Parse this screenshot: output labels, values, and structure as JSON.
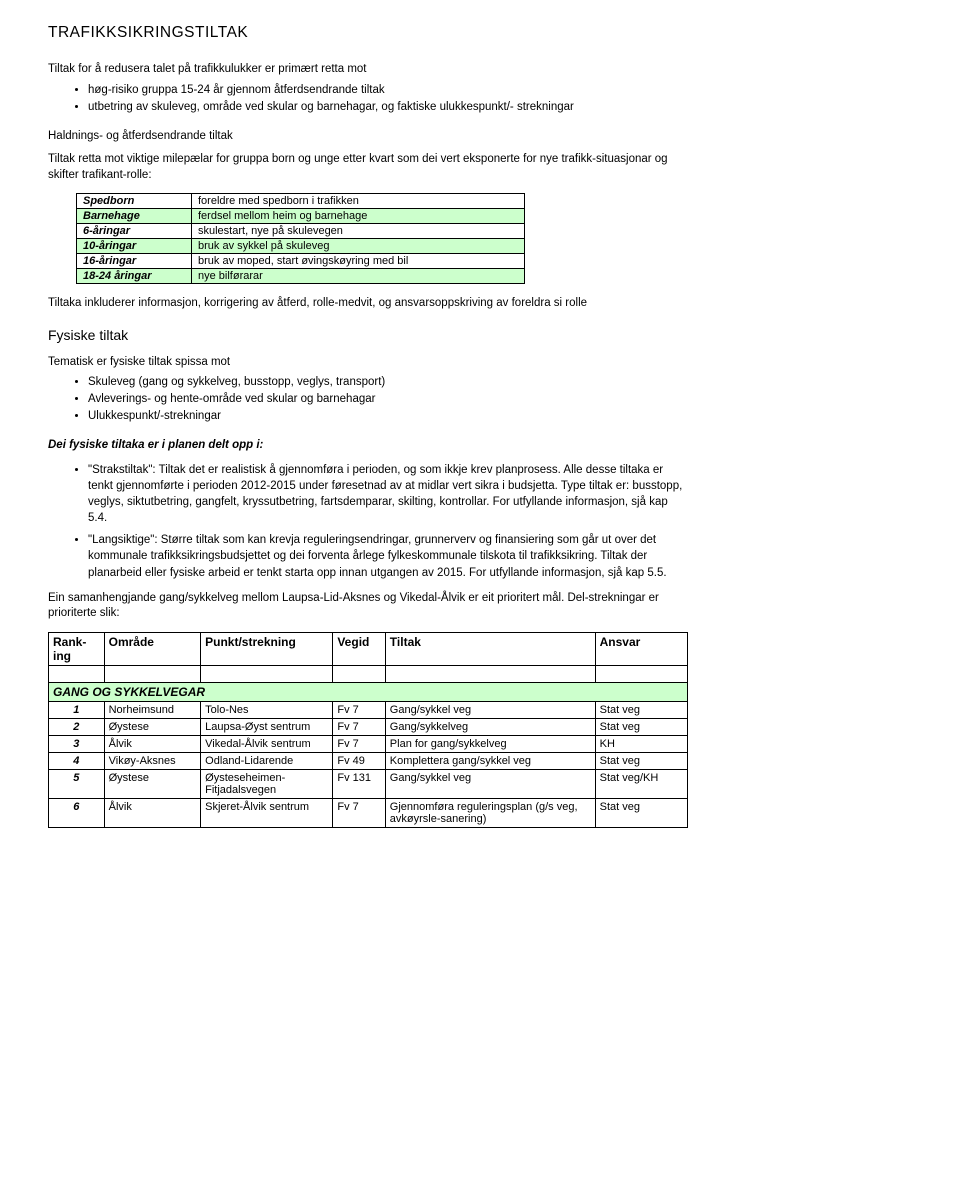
{
  "title": "TRAFIKKSIKRINGSTILTAK",
  "intro": "Tiltak for å redusera talet på trafikkulukker er primært retta mot",
  "intro_bullets": [
    "høg-risiko gruppa 15-24 år gjennom åtferdsendrande tiltak",
    "utbetring av skuleveg, område ved skular og barnehagar, og faktiske ulukkespunkt/- strekningar"
  ],
  "haldnings_title": "Haldnings- og åtferdsendrande tiltak",
  "haldnings_text": "Tiltak retta mot viktige milepælar for gruppa born og unge etter kvart som dei vert eksponerte for nye trafikk-situasjonar og skifter trafikant-rolle:",
  "green_table": {
    "band_color": "#ccffcc",
    "rows": [
      {
        "k": "Spedborn",
        "v": "foreldre med spedborn i trafikken",
        "band": false
      },
      {
        "k": "Barnehage",
        "v": "ferdsel mellom heim og barnehage",
        "band": true
      },
      {
        "k": "6-åringar",
        "v": "skulestart, nye på skulevegen",
        "band": false
      },
      {
        "k": "10-åringar",
        "v": "bruk av sykkel på skuleveg",
        "band": true
      },
      {
        "k": "16-åringar",
        "v": "bruk av moped, start øvingskøyring med bil",
        "band": false
      },
      {
        "k": "18-24 åringar",
        "v": "nye bilførarar",
        "band": true
      }
    ]
  },
  "tiltaka_text": "Tiltaka inkluderer informasjon, korrigering av åtferd, rolle-medvit, og ansvarsoppskriving av foreldra si rolle",
  "fysiske_title": "Fysiske tiltak",
  "tematisk_intro": "Tematisk er fysiske tiltak spissa mot",
  "tematisk_bullets": [
    "Skuleveg (gang og sykkelveg, busstopp, veglys, transport)",
    "Avleverings- og hente-område ved skular og barnehagar",
    "Ulukkespunkt/-strekningar"
  ],
  "delt_opp": "Dei fysiske tiltaka er i planen delt opp i:",
  "strakstiltak": {
    "lead": "\"Strakstiltak\":",
    "text1": " Tiltak det er realistisk å gjennomføra i perioden, og som ikkje krev planprosess. Alle desse tiltaka er ",
    "bold_t": "t",
    "text2": "enkt gjennomførte i perioden 2012-2015 under føresetnad av at midlar vert sikra i budsjetta. Type tiltak er: b",
    "bold_rest": "usstopp, veglys, siktutbetring, gangfelt, kryssutbetring, fartsdemparar, skilting, kontrollar",
    "period": ". ",
    "tail": "For utfyllande informasjon, sjå kap 5.4."
  },
  "langsiktige": {
    "lead": "\"Langsiktige\":",
    "text": " Større tiltak som kan krevja reguleringsendringar, grunnerverv og finansiering som går ut over det kommunale trafikksikringsbudsjettet og dei forventa årlege fylkeskommunale tilskota til trafikksikring. Tiltak der planarbeid eller fysiske arbeid er tenkt starta opp innan utgangen av 2015. ",
    "tail": "For utfyllande informasjon, sjå kap 5.5."
  },
  "prioritert_text": "Ein samanhengjande gang/sykkelveg mellom Laupsa-Lid-Aksnes og Vikedal-Ålvik er eit prioritert mål. Del-strekningar er prioriterte slik:",
  "rank_table": {
    "headers": {
      "rank": "Rank-ing",
      "omrade": "Område",
      "punkt": "Punkt/strekning",
      "vegid": "Vegid",
      "tiltak": "Tiltak",
      "ansvar": "Ansvar"
    },
    "section": "GANG OG SYKKELVEGAR",
    "section_bg": "#ccffcc",
    "rows": [
      {
        "n": "1",
        "omr": "Norheimsund",
        "punkt": "Tolo-Nes",
        "veg": "Fv 7",
        "tiltak": "Gang/sykkel veg",
        "ansvar": "Stat veg"
      },
      {
        "n": "2",
        "omr": "Øystese",
        "punkt": "Laupsa-Øyst sentrum",
        "veg": "Fv 7",
        "tiltak": "Gang/sykkelveg",
        "ansvar": "Stat veg"
      },
      {
        "n": "3",
        "omr": "Ålvik",
        "punkt": "Vikedal-Ålvik sentrum",
        "veg": "Fv 7",
        "tiltak": "Plan for gang/sykkelveg",
        "ansvar": "KH"
      },
      {
        "n": "4",
        "omr": "Vikøy-Aksnes",
        "punkt": "Odland-Lidarende",
        "veg": "Fv 49",
        "tiltak": "Komplettera gang/sykkel veg",
        "ansvar": "Stat veg"
      },
      {
        "n": "5",
        "omr": "Øystese",
        "punkt": "Øysteseheimen-Fitjadalsvegen",
        "veg": "Fv 131",
        "tiltak": "Gang/sykkel veg",
        "ansvar": "Stat veg/KH"
      },
      {
        "n": "6",
        "omr": "Ålvik",
        "punkt": "Skjeret-Ålvik sentrum",
        "veg": "Fv 7",
        "tiltak": "Gjennomføra reguleringsplan (g/s veg, avkøyrsle-sanering)",
        "ansvar": "Stat veg"
      }
    ]
  }
}
